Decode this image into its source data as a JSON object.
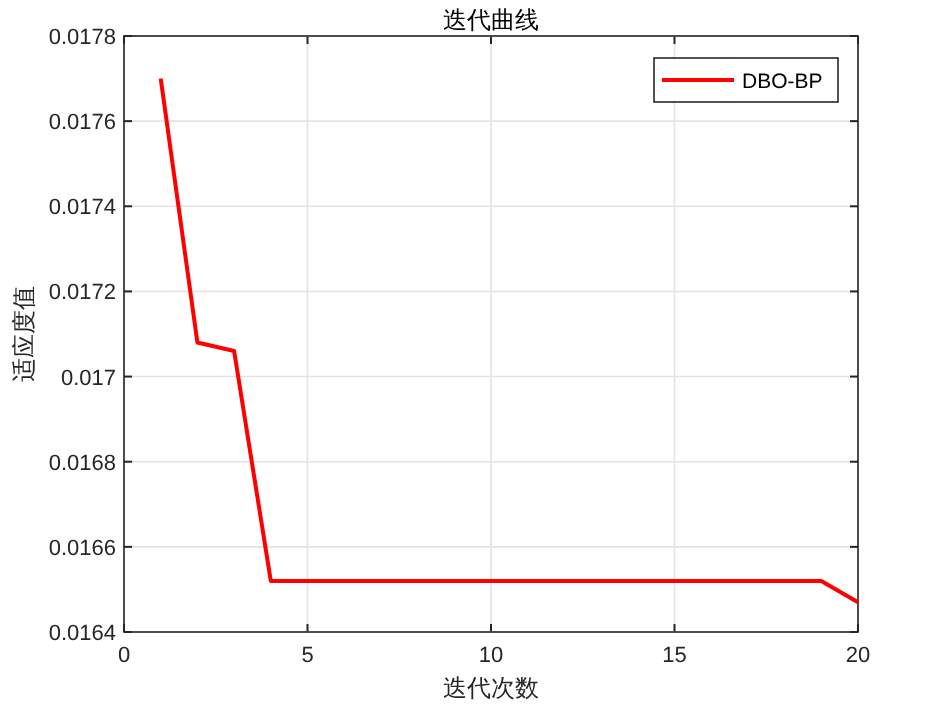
{
  "chart_data": {
    "type": "line",
    "title": "迭代曲线",
    "xlabel": "迭代次数",
    "ylabel": "适应度值",
    "x": [
      1,
      2,
      3,
      4,
      5,
      6,
      7,
      8,
      9,
      10,
      11,
      12,
      13,
      14,
      15,
      16,
      17,
      18,
      19,
      20
    ],
    "series": [
      {
        "name": "DBO-BP",
        "color": "#ff0000",
        "values": [
          0.0177,
          0.01708,
          0.01706,
          0.01652,
          0.01652,
          0.01652,
          0.01652,
          0.01652,
          0.01652,
          0.01652,
          0.01652,
          0.01652,
          0.01652,
          0.01652,
          0.01652,
          0.01652,
          0.01652,
          0.01652,
          0.01652,
          0.01647
        ]
      }
    ],
    "xlim": [
      0,
      20
    ],
    "xticks": [
      0,
      5,
      10,
      15,
      20
    ],
    "ylim": [
      0.0164,
      0.0178
    ],
    "yticks": [
      0.0164,
      0.0166,
      0.0168,
      0.017,
      0.0172,
      0.0174,
      0.0176,
      0.0178
    ],
    "grid": true,
    "legend": "top right",
    "marker": "none",
    "line_style": "solid"
  }
}
